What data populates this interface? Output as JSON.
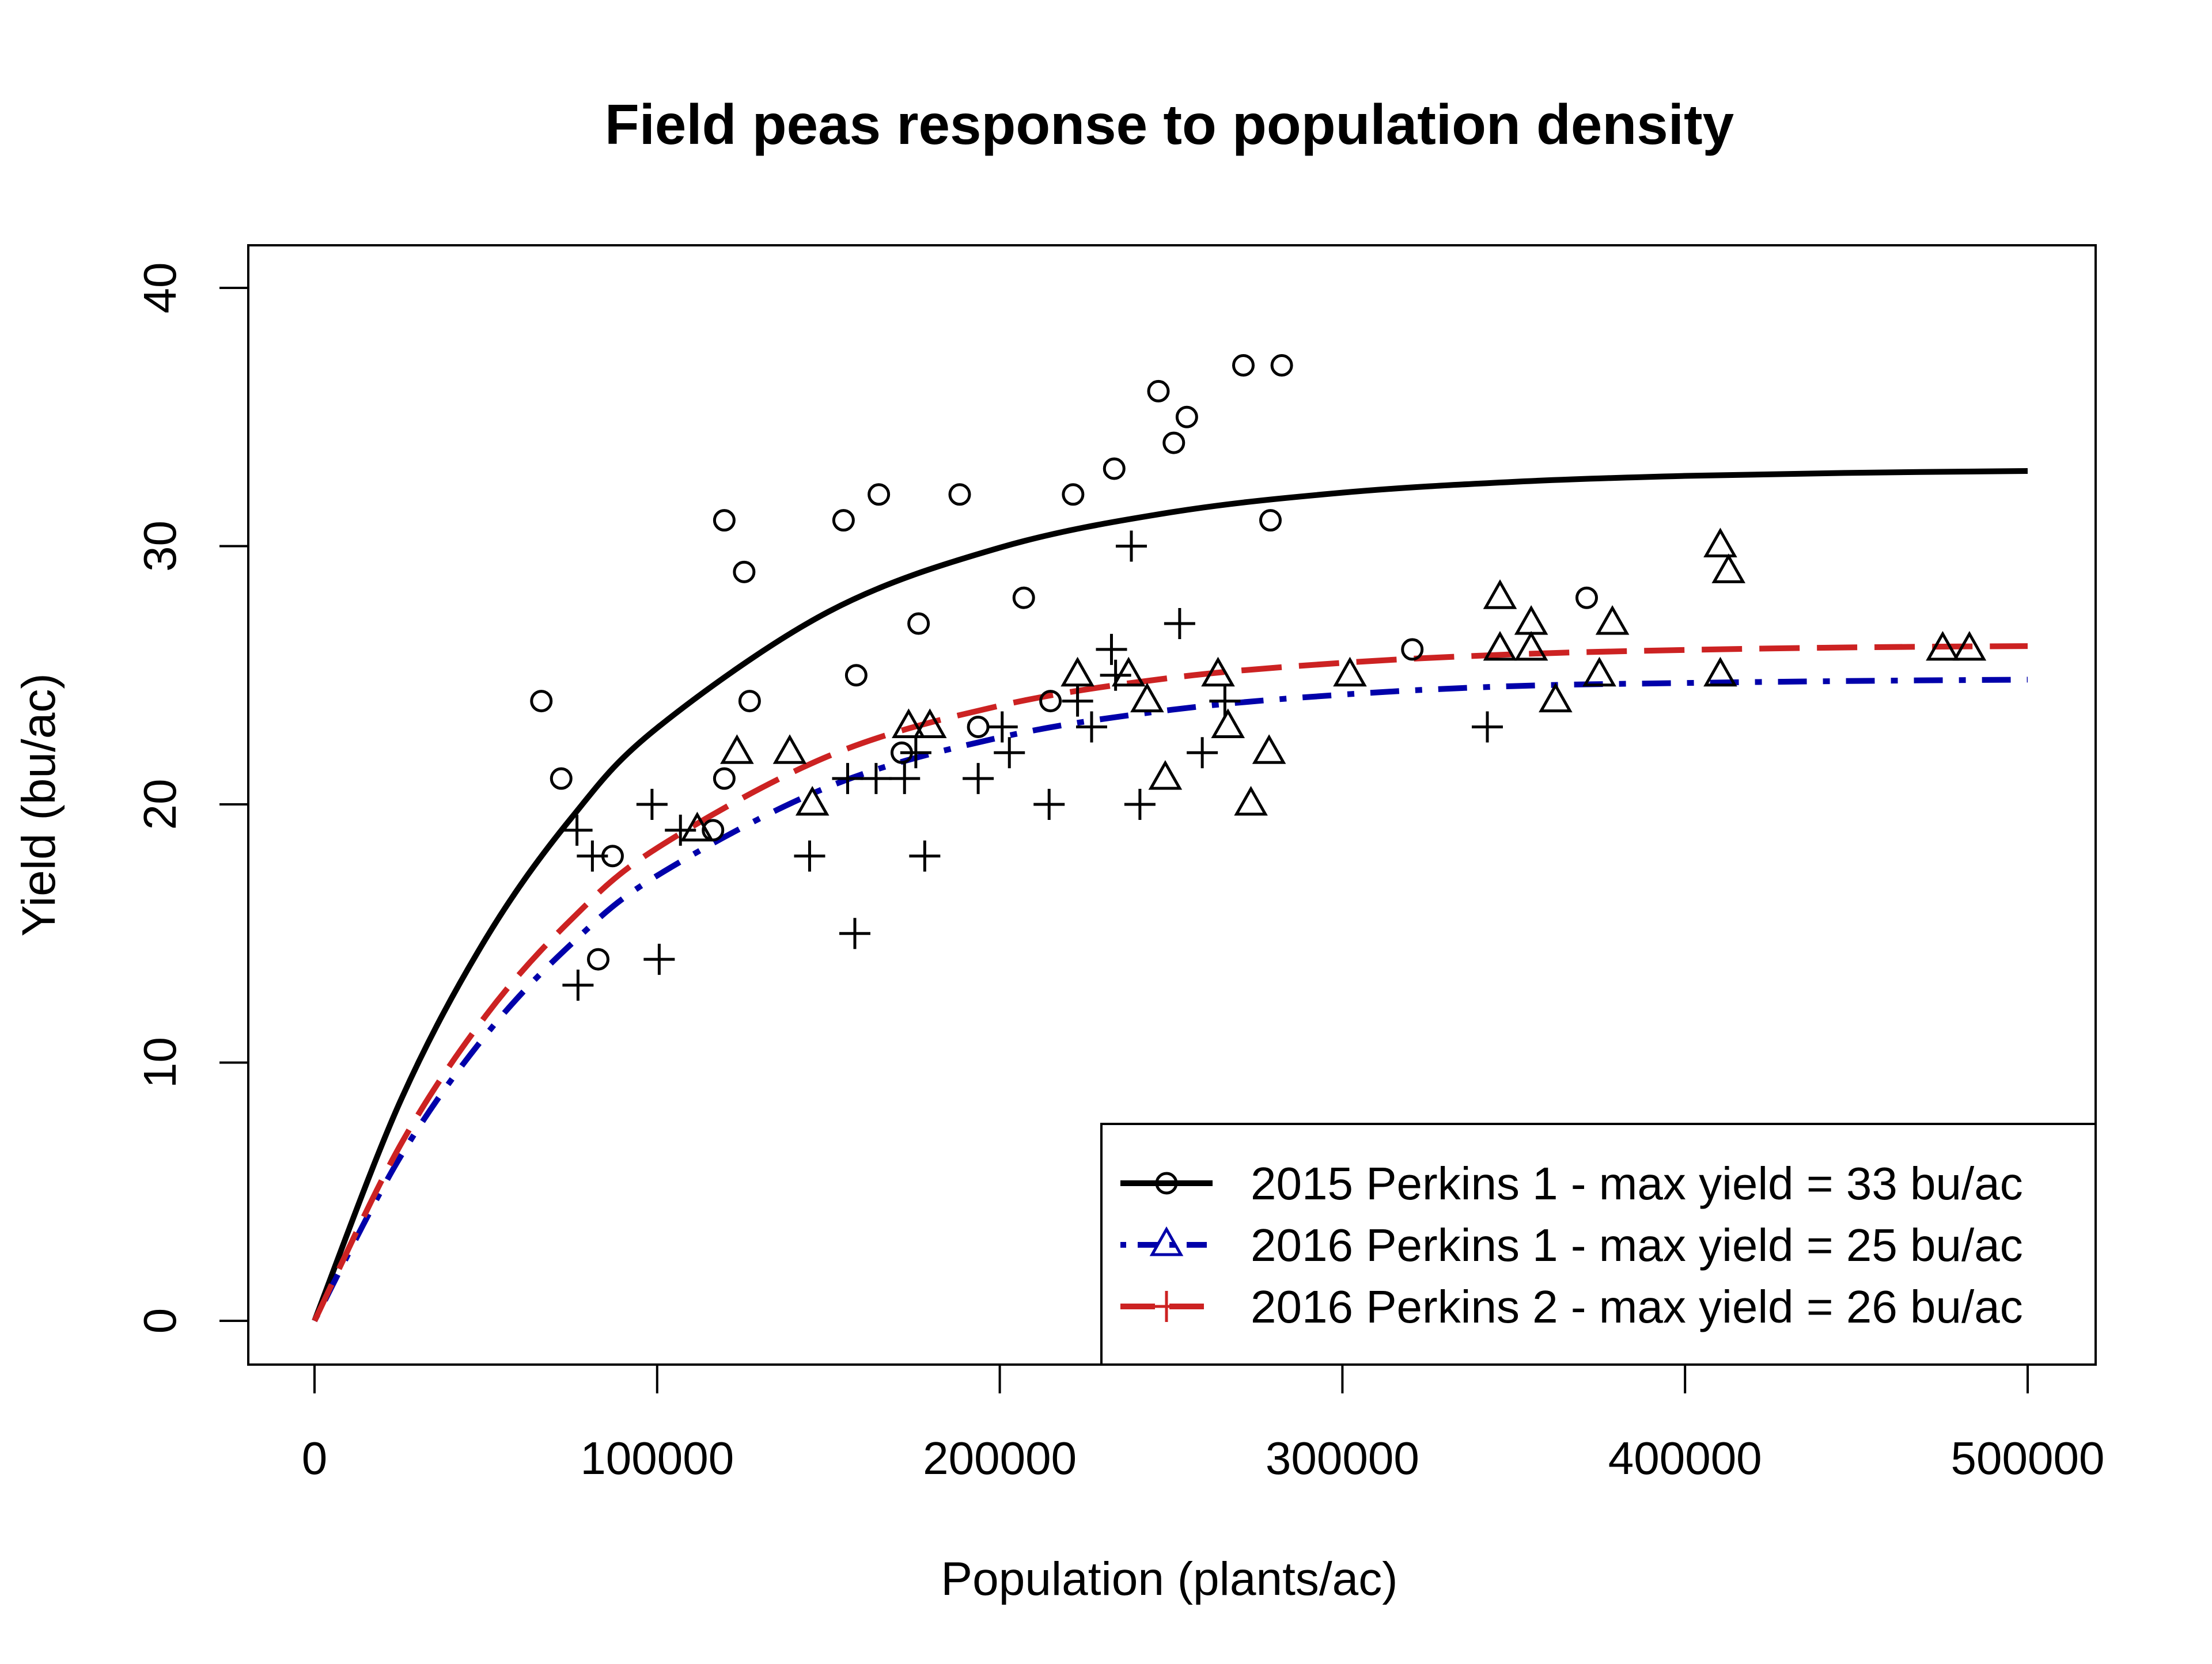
{
  "chart_data": {
    "type": "scatter",
    "title": "Field peas response to population density",
    "xlabel": "Population (plants/ac)",
    "ylabel": "Yield (bu/ac)",
    "xlim": [
      0,
      500000
    ],
    "ylim": [
      0,
      40
    ],
    "xticks": [
      "0",
      "100000",
      "200000",
      "300000",
      "400000",
      "500000"
    ],
    "yticks": [
      "0",
      "10",
      "20",
      "30",
      "40"
    ],
    "grid": false,
    "legend_position": "bottom-right",
    "curve_x": [
      0,
      25000,
      50000,
      75000,
      100000,
      150000,
      200000,
      250000,
      300000,
      350000,
      400000,
      450000,
      500000
    ],
    "series": [
      {
        "name": "2015 Perkins 1 - max yield = 33 bu/ac",
        "color": "#000000",
        "marker": "circle",
        "line": "solid",
        "curve_y": [
          0,
          8.49,
          14.8,
          19.48,
          22.96,
          27.46,
          29.94,
          31.31,
          32.07,
          32.49,
          32.72,
          32.84,
          32.91
        ],
        "points": [
          [
            66200,
            24
          ],
          [
            72000,
            21
          ],
          [
            119600,
            31
          ],
          [
            125400,
            29
          ],
          [
            127000,
            24
          ],
          [
            119600,
            21
          ],
          [
            116300,
            19
          ],
          [
            87000,
            18
          ],
          [
            82800,
            14
          ],
          [
            154400,
            31
          ],
          [
            158100,
            25
          ],
          [
            164700,
            32
          ],
          [
            176300,
            27
          ],
          [
            188300,
            32
          ],
          [
            171400,
            22
          ],
          [
            193700,
            23
          ],
          [
            207000,
            28
          ],
          [
            214800,
            24
          ],
          [
            221400,
            32
          ],
          [
            233400,
            33
          ],
          [
            246300,
            36
          ],
          [
            250800,
            34
          ],
          [
            254600,
            35
          ],
          [
            271100,
            37
          ],
          [
            282300,
            37
          ],
          [
            279000,
            31
          ],
          [
            320400,
            26
          ],
          [
            371300,
            28
          ]
        ]
      },
      {
        "name": "2016 Perkins 1 - max yield = 25 bu/ac",
        "color": "#0000aa",
        "marker": "triangle",
        "line": "dashdot",
        "curve_y": [
          0,
          6.34,
          11.07,
          14.6,
          17.24,
          20.68,
          22.59,
          23.66,
          24.25,
          24.58,
          24.7,
          24.78,
          24.83
        ],
        "points": [
          [
            111700,
            19
          ],
          [
            123300,
            22
          ],
          [
            138700,
            22
          ],
          [
            145300,
            20
          ],
          [
            173400,
            23
          ],
          [
            179600,
            23
          ],
          [
            222700,
            25
          ],
          [
            237600,
            25
          ],
          [
            243000,
            24
          ],
          [
            248300,
            21
          ],
          [
            263700,
            25
          ],
          [
            266600,
            23
          ],
          [
            273300,
            20
          ],
          [
            278600,
            22
          ],
          [
            302200,
            25
          ],
          [
            346000,
            28
          ],
          [
            346000,
            26
          ],
          [
            355100,
            27
          ],
          [
            355100,
            26
          ],
          [
            362200,
            24
          ],
          [
            375000,
            25
          ],
          [
            378800,
            27
          ],
          [
            410300,
            30
          ],
          [
            412700,
            29
          ],
          [
            410300,
            25
          ],
          [
            475200,
            26
          ],
          [
            483000,
            26
          ]
        ]
      },
      {
        "name": "2016 Perkins 2 - max yield = 26 bu/ac",
        "color": "#cc2222",
        "marker": "plus",
        "line": "longdash",
        "curve_y": [
          0,
          6.79,
          11.82,
          15.55,
          18.31,
          21.87,
          23.82,
          24.9,
          25.48,
          25.81,
          25.98,
          26.08,
          26.13
        ],
        "points": [
          [
            76600,
            19
          ],
          [
            81100,
            18
          ],
          [
            76900,
            13
          ],
          [
            98500,
            20
          ],
          [
            100600,
            14
          ],
          [
            106800,
            19
          ],
          [
            144500,
            18
          ],
          [
            157700,
            15
          ],
          [
            155600,
            21
          ],
          [
            163900,
            21
          ],
          [
            172200,
            21
          ],
          [
            175500,
            22
          ],
          [
            178100,
            18
          ],
          [
            193700,
            21
          ],
          [
            200700,
            23
          ],
          [
            202800,
            22
          ],
          [
            214400,
            20
          ],
          [
            222700,
            24
          ],
          [
            226800,
            23
          ],
          [
            232600,
            26
          ],
          [
            233800,
            25
          ],
          [
            238400,
            30
          ],
          [
            240900,
            20
          ],
          [
            252500,
            27
          ],
          [
            259100,
            22
          ],
          [
            265700,
            24
          ],
          [
            342300,
            23
          ]
        ]
      }
    ]
  }
}
